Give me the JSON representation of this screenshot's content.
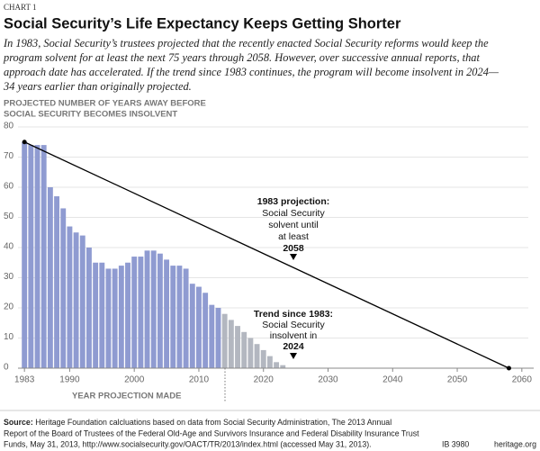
{
  "header": {
    "label": "CHART 1",
    "title": "Social Security’s Life Expectancy Keeps Getting Shorter",
    "subtitle_lines": [
      "In 1983, Social Security’s trustees projected that the recently enacted Social Security reforms would keep the",
      "program solvent for at least the next 75 years through 2058. However, over successive annual reports, that",
      "approach date has accelerated.  If the trend since 1983 continues, the program will become insolvent in 2024—",
      "34 years earlier than originally projected."
    ]
  },
  "chart_data": {
    "type": "bar",
    "y_label_lines": [
      "PROJECTED NUMBER OF YEARS AWAY BEFORE",
      "SOCIAL SECURITY BECOMES INSOLVENT"
    ],
    "x_label": "YEAR PROJECTION MADE",
    "x": [
      1983,
      1984,
      1985,
      1986,
      1987,
      1988,
      1989,
      1990,
      1991,
      1992,
      1993,
      1994,
      1995,
      1996,
      1997,
      1998,
      1999,
      2000,
      2001,
      2002,
      2003,
      2004,
      2005,
      2006,
      2007,
      2008,
      2009,
      2010,
      2011,
      2012,
      2013,
      2014,
      2015,
      2016,
      2017,
      2018,
      2019,
      2020,
      2021,
      2022,
      2023
    ],
    "values": [
      75,
      74,
      74,
      74,
      60,
      57,
      53,
      47,
      45,
      44,
      40,
      35,
      35,
      33,
      33,
      34,
      35,
      37,
      37,
      39,
      39,
      38,
      36,
      34,
      34,
      33,
      28,
      27,
      25,
      21,
      20,
      18,
      16,
      14,
      12,
      10,
      8,
      6,
      4,
      2,
      1
    ],
    "colors": [
      "#8f9bd1",
      "#8f9bd1",
      "#8f9bd1",
      "#8f9bd1",
      "#8f9bd1",
      "#8f9bd1",
      "#8f9bd1",
      "#8f9bd1",
      "#8f9bd1",
      "#8f9bd1",
      "#8f9bd1",
      "#8f9bd1",
      "#8f9bd1",
      "#8f9bd1",
      "#8f9bd1",
      "#8f9bd1",
      "#8f9bd1",
      "#8f9bd1",
      "#8f9bd1",
      "#8f9bd1",
      "#8f9bd1",
      "#8f9bd1",
      "#8f9bd1",
      "#8f9bd1",
      "#8f9bd1",
      "#8f9bd1",
      "#8f9bd1",
      "#8f9bd1",
      "#8f9bd1",
      "#8f9bd1",
      "#8f9bd1",
      "#b3b7c0",
      "#b3b7c0",
      "#b3b7c0",
      "#b3b7c0",
      "#b3b7c0",
      "#b3b7c0",
      "#b3b7c0",
      "#b3b7c0",
      "#b3b7c0",
      "#b3b7c0"
    ],
    "line": {
      "x": [
        1983,
        2058
      ],
      "values": [
        75,
        0
      ],
      "color": "#000000"
    },
    "xlim": [
      1982,
      2061
    ],
    "xticks": [
      1983,
      1990,
      2000,
      2010,
      2020,
      2030,
      2040,
      2050,
      2060
    ],
    "ylim": [
      0,
      80
    ],
    "yticks": [
      0,
      10,
      20,
      30,
      40,
      50,
      60,
      70,
      80
    ],
    "grid": true,
    "annotations": [
      {
        "lines": [
          "1983 projection:",
          "Social Security",
          "solvent until",
          "at least",
          "2058"
        ]
      },
      {
        "lines": [
          "Trend since 1983:",
          "Social Security",
          "insolvent in",
          "2024"
        ]
      }
    ]
  },
  "footer": {
    "source_label": "Source:",
    "source_lines": [
      " Heritage Foundation calcluations based on data from Social Security Administration, The 2013 Annual",
      "Report of the Board of Trustees of the Federal Old-Age and Survivors Insurance and Federal Disability Insurance Trust",
      "Funds, May 31, 2013, http://www.socialsecurity.gov/OACT/TR/2013/index.html (accessed May 31, 2013)."
    ],
    "id": "IB 3980",
    "site": "heritage.org"
  }
}
